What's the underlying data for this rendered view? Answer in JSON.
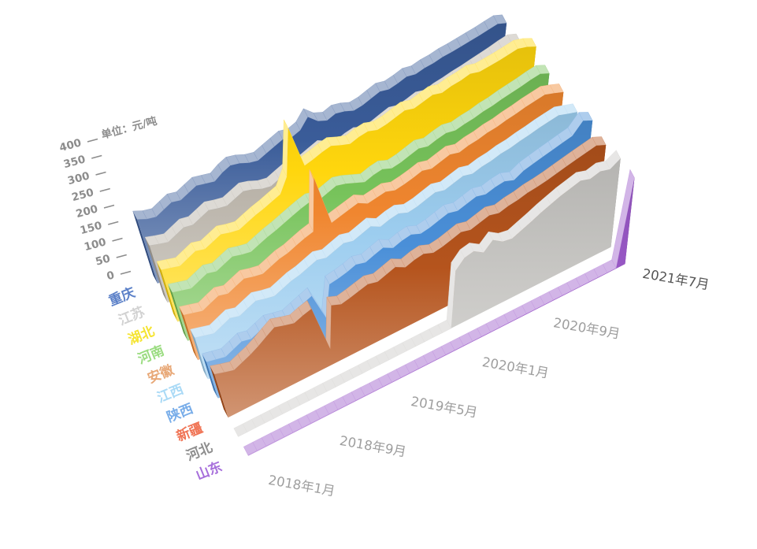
{
  "background": "#ffffff",
  "chart_data": {
    "type": "area",
    "subtype": "3d-ridgeline",
    "title": "",
    "unit_label": "单位：元/吨",
    "y_axis": {
      "label": "单位：元/吨",
      "min": 0,
      "max": 400,
      "step": 50,
      "ticks": [
        0,
        50,
        100,
        150,
        200,
        250,
        300,
        350,
        400
      ],
      "tick_color": "#8c8c8c"
    },
    "x_axis": {
      "labels": [
        "2018年1月",
        "2018年9月",
        "2019年5月",
        "2020年1月",
        "2020年9月",
        "2021年7月"
      ],
      "label_t_index": [
        0,
        8,
        16,
        24,
        32,
        42
      ],
      "label_color": "#9e9e9e",
      "last_label_color": "#555555",
      "months_span": "2018年1月 — 2021年7月",
      "n_points": 43
    },
    "legend_position": "left",
    "grid": false,
    "series": [
      {
        "name": "重庆",
        "color": "#3A5C99",
        "label_color": "#5B80C8",
        "values": [
          185,
          175,
          170,
          180,
          190,
          185,
          195,
          205,
          200,
          195,
          210,
          220,
          215,
          205,
          200,
          210,
          220,
          230,
          225,
          235,
          265,
          240,
          230,
          240,
          235,
          225,
          230,
          240,
          250,
          245,
          252,
          262,
          258,
          266,
          270,
          278,
          282,
          288,
          294,
          300,
          308,
          315,
          305
        ]
      },
      {
        "name": "江苏",
        "color": "#B3ACA1",
        "label_color": "#D2D2D2",
        "values": [
          165,
          158,
          152,
          162,
          172,
          168,
          178,
          188,
          182,
          178,
          188,
          198,
          192,
          182,
          178,
          188,
          198,
          208,
          202,
          212,
          222,
          208,
          198,
          208,
          214,
          204,
          210,
          220,
          230,
          224,
          232,
          242,
          236,
          246,
          252,
          260,
          266,
          274,
          282,
          290,
          300,
          308,
          298
        ]
      },
      {
        "name": "湖北",
        "color": "#FFD60D",
        "label_color": "#F5E432",
        "values": [
          150,
          144,
          138,
          148,
          158,
          152,
          162,
          172,
          166,
          162,
          172,
          182,
          190,
          200,
          210,
          252,
          390,
          262,
          270,
          280,
          288,
          278,
          270,
          280,
          286,
          278,
          284,
          294,
          304,
          298,
          308,
          318,
          312,
          322,
          328,
          338,
          332,
          338,
          344,
          352,
          360,
          354,
          342
        ]
      },
      {
        "name": "河南",
        "color": "#77C35B",
        "label_color": "#9ADC80",
        "values": [
          140,
          134,
          128,
          138,
          148,
          142,
          152,
          162,
          156,
          152,
          162,
          172,
          180,
          190,
          200,
          210,
          218,
          212,
          222,
          232,
          226,
          216,
          206,
          216,
          222,
          212,
          218,
          228,
          238,
          232,
          242,
          250,
          246,
          254,
          260,
          270,
          276,
          286,
          294,
          302,
          312,
          320,
          308
        ]
      },
      {
        "name": "安徽",
        "color": "#F0862F",
        "label_color": "#E8A877",
        "values": [
          130,
          124,
          118,
          128,
          138,
          132,
          142,
          152,
          146,
          142,
          152,
          162,
          168,
          178,
          188,
          196,
          350,
          198,
          206,
          214,
          222,
          208,
          214,
          220,
          212,
          218,
          226,
          236,
          230,
          240,
          250,
          244,
          254,
          260,
          270,
          276,
          286,
          294,
          304,
          312,
          320,
          312,
          302
        ]
      },
      {
        "name": "江西",
        "color": "#9CCDEF",
        "label_color": "#AADAF6",
        "values": [
          120,
          114,
          108,
          118,
          128,
          122,
          132,
          142,
          136,
          132,
          142,
          152,
          158,
          168,
          178,
          172,
          182,
          192,
          186,
          196,
          206,
          192,
          202,
          208,
          198,
          204,
          214,
          224,
          218,
          228,
          238,
          232,
          242,
          248,
          258,
          264,
          274,
          282,
          292,
          300,
          308,
          300,
          292
        ]
      },
      {
        "name": "陕西",
        "color": "#4A8FD8",
        "label_color": "#78ADE9",
        "values": [
          105,
          100,
          95,
          105,
          115,
          110,
          120,
          130,
          125,
          120,
          130,
          140,
          150,
          70,
          160,
          165,
          172,
          182,
          176,
          186,
          196,
          182,
          192,
          198,
          188,
          194,
          204,
          214,
          208,
          218,
          228,
          222,
          232,
          238,
          228,
          246,
          256,
          266,
          276,
          286,
          296,
          335,
          322
        ]
      },
      {
        "name": "新疆",
        "color": "#B5541D",
        "label_color": "#F07455",
        "values": [
          125,
          118,
          112,
          122,
          132,
          145,
          160,
          175,
          168,
          162,
          172,
          180,
          45,
          165,
          155,
          162,
          170,
          178,
          172,
          182,
          192,
          178,
          188,
          194,
          184,
          190,
          200,
          210,
          204,
          214,
          224,
          218,
          228,
          234,
          244,
          250,
          258,
          268,
          278,
          288,
          298,
          308,
          296
        ]
      },
      {
        "name": "河北",
        "color": "#C9C8C5",
        "label_color": "#8E8E8E",
        "values": [
          0,
          0,
          0,
          0,
          0,
          0,
          0,
          0,
          0,
          0,
          0,
          0,
          0,
          0,
          0,
          0,
          0,
          0,
          0,
          0,
          0,
          0,
          0,
          0,
          0,
          170,
          198,
          206,
          188,
          215,
          196,
          192,
          206,
          220,
          236,
          250,
          264,
          276,
          288,
          280,
          292,
          285,
          308
        ]
      },
      {
        "name": "山东",
        "color": "#9C5ACA",
        "label_color": "#A76FDB",
        "values": [
          2,
          2,
          2,
          2,
          2,
          2,
          2,
          2,
          2,
          2,
          2,
          2,
          2,
          2,
          2,
          2,
          2,
          2,
          2,
          2,
          2,
          2,
          2,
          2,
          2,
          2,
          2,
          2,
          2,
          2,
          2,
          2,
          2,
          2,
          2,
          2,
          2,
          2,
          2,
          2,
          2,
          2,
          300
        ]
      }
    ]
  }
}
